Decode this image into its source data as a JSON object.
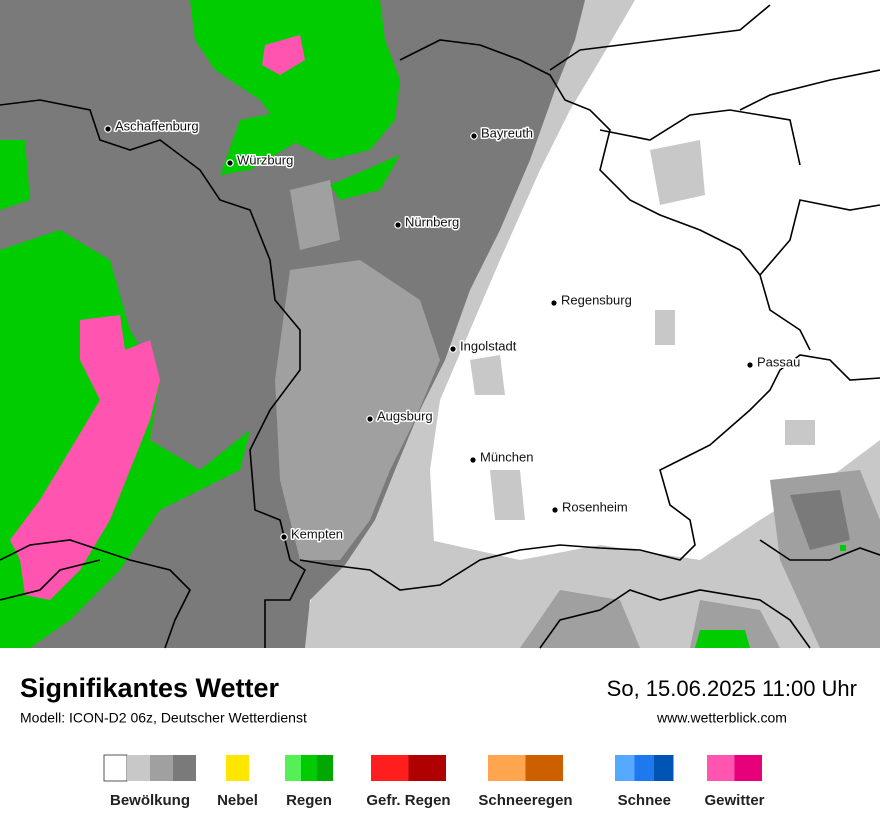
{
  "header": {
    "title": "Signifikantes Wetter",
    "model": "Modell: ICON-D2 06z, Deutscher Wetterdienst",
    "date": "So, 15.06.2025 11:00 Uhr",
    "website": "www.wetterblick.com"
  },
  "cities": [
    "Aschaffenburg",
    "Würzburg",
    "Bayreuth",
    "Nürnberg",
    "Regensburg",
    "Ingolstadt",
    "Passau",
    "Augsburg",
    "München",
    "Rosenheim",
    "Kempten"
  ],
  "legend": [
    {
      "label": "Bewölkung",
      "colors": [
        "#ffffff",
        "#c8c8c8",
        "#a0a0a0",
        "#7a7a7a"
      ]
    },
    {
      "label": "Nebel",
      "colors": [
        "#ffe600"
      ]
    },
    {
      "label": "Regen",
      "colors": [
        "#55f055",
        "#00cc00",
        "#00a800"
      ]
    },
    {
      "label": "Gefr. Regen",
      "colors": [
        "#ff1e1e",
        "#b00000"
      ]
    },
    {
      "label": "Schneeregen",
      "colors": [
        "#ffa550",
        "#cd5f00"
      ]
    },
    {
      "label": "Schnee",
      "colors": [
        "#55aaff",
        "#1e78ee",
        "#0055b4"
      ]
    },
    {
      "label": "Gewitter",
      "colors": [
        "#ff55b0",
        "#e6007a"
      ]
    }
  ]
}
